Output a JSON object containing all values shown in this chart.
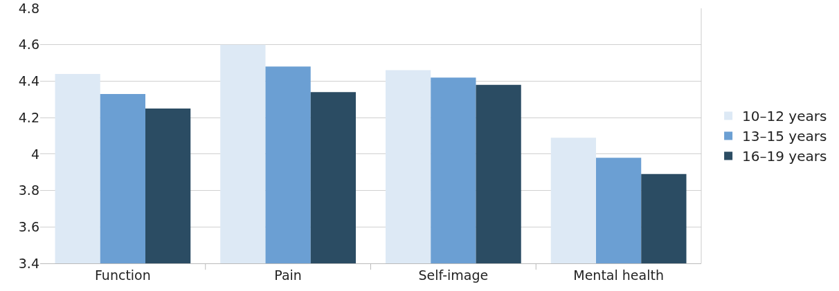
{
  "chart_data": {
    "type": "bar",
    "categories": [
      "Function",
      "Pain",
      "Self-image",
      "Mental health"
    ],
    "series": [
      {
        "name": "10–12 years",
        "color": "#dde9f5",
        "values": [
          4.44,
          4.6,
          4.46,
          4.09
        ]
      },
      {
        "name": "13–15 years",
        "color": "#6b9fd3",
        "values": [
          4.33,
          4.48,
          4.42,
          3.98
        ]
      },
      {
        "name": "16–19 years",
        "color": "#2b4c63",
        "values": [
          4.25,
          4.34,
          4.38,
          3.89
        ]
      }
    ],
    "ylim": [
      3.4,
      4.8
    ],
    "yticks": [
      3.4,
      3.6,
      3.8,
      4,
      4.2,
      4.4,
      4.6,
      4.8
    ],
    "grid": "y",
    "legend": "right"
  }
}
